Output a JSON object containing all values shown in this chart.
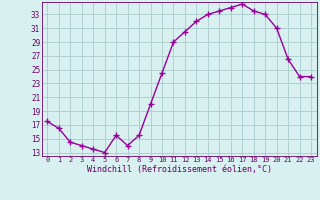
{
  "x": [
    0,
    1,
    2,
    3,
    4,
    5,
    6,
    7,
    8,
    9,
    10,
    11,
    12,
    13,
    14,
    15,
    16,
    17,
    18,
    19,
    20,
    21,
    22,
    23
  ],
  "y": [
    17.5,
    16.5,
    14.5,
    14.0,
    13.5,
    13.0,
    15.5,
    14.0,
    15.5,
    20.0,
    24.5,
    29.0,
    30.5,
    32.0,
    33.0,
    33.5,
    34.0,
    34.5,
    33.5,
    33.0,
    31.0,
    26.5,
    24.0,
    24.0
  ],
  "line_color": "#990099",
  "marker": "+",
  "marker_size": 4,
  "marker_lw": 1.0,
  "line_width": 1.0,
  "bg_color": "#d8f0f0",
  "grid_color": "#aacccc",
  "xlabel": "Windchill (Refroidissement éolien,°C)",
  "xlabel_color": "#660066",
  "yticks": [
    13,
    15,
    17,
    19,
    21,
    23,
    25,
    27,
    29,
    31,
    33
  ],
  "xtick_labels": [
    "0",
    "1",
    "2",
    "3",
    "4",
    "5",
    "6",
    "7",
    "8",
    "9",
    "10",
    "11",
    "12",
    "13",
    "14",
    "15",
    "16",
    "17",
    "18",
    "19",
    "20",
    "21",
    "22",
    "23"
  ],
  "ylim": [
    12.5,
    34.8
  ],
  "xlim": [
    -0.5,
    23.5
  ],
  "tick_color": "#660066",
  "axis_color": "#660066",
  "ytick_fontsize": 5.5,
  "xtick_fontsize": 5.0,
  "xlabel_fontsize": 6.0
}
